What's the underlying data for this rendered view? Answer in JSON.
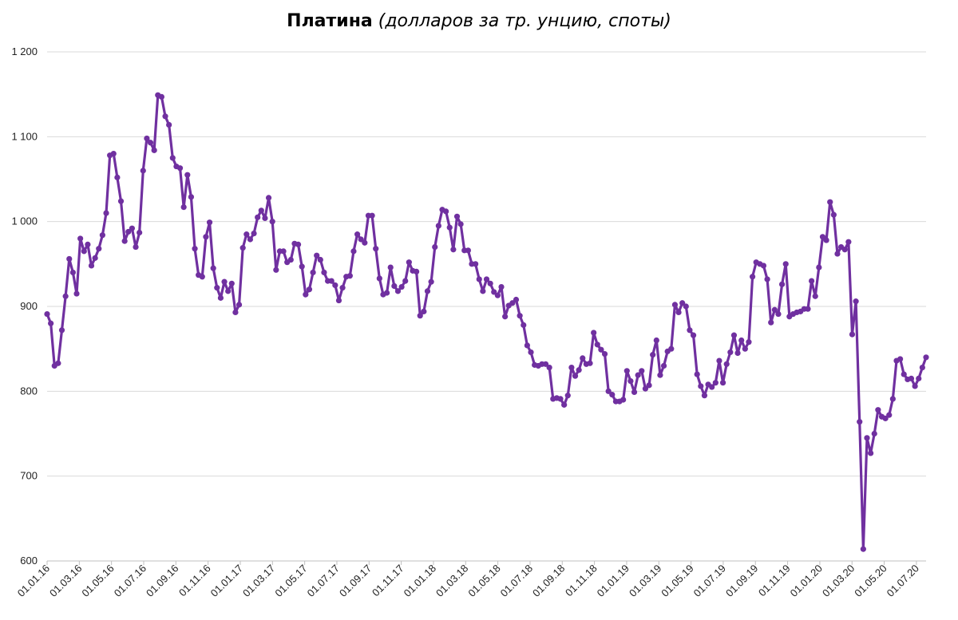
{
  "chart_data": {
    "type": "line",
    "title_bold": "Платина",
    "title_italic": "(долларов за тр. унцию, споты)",
    "xlabel": "",
    "ylabel": "",
    "ylim": [
      600,
      1200
    ],
    "y_ticks": [
      "600",
      "700",
      "800",
      "900",
      "1 000",
      "1 100",
      "1 200"
    ],
    "y_tick_values": [
      600,
      700,
      800,
      900,
      1000,
      1100,
      1200
    ],
    "x_ticks": [
      "01.01.16",
      "01.03.16",
      "01.05.16",
      "01.07.16",
      "01.09.16",
      "01.11.16",
      "01.01.17",
      "01.03.17",
      "01.05.17",
      "01.07.17",
      "01.09.17",
      "01.11.17",
      "01.01.18",
      "01.03.18",
      "01.05.18",
      "01.07.18",
      "01.09.18",
      "01.11.18",
      "01.01.19",
      "01.03.19",
      "01.05.19",
      "01.07.19",
      "01.09.19",
      "01.11.19",
      "01.01.20",
      "01.03.20",
      "01.05.20",
      "01.07.20"
    ],
    "grid": "horizontal",
    "line_color": "#7030a0",
    "series": [
      {
        "values": [
          891,
          880,
          830,
          833,
          872,
          912,
          956,
          940,
          915,
          980,
          965,
          973,
          948,
          957,
          968,
          984,
          1010,
          1078,
          1080,
          1052,
          1024,
          977,
          988,
          992,
          970,
          987,
          1060,
          1098,
          1093,
          1084,
          1149,
          1147,
          1124,
          1114,
          1075,
          1065,
          1063,
          1017,
          1055,
          1029,
          968,
          937,
          935,
          982,
          999,
          945,
          922,
          910,
          929,
          918,
          927,
          893,
          902,
          969,
          985,
          979,
          986,
          1005,
          1013,
          1004,
          1028,
          1000,
          943,
          965,
          965,
          952,
          955,
          974,
          973,
          947,
          914,
          920,
          940,
          960,
          955,
          940,
          930,
          930,
          925,
          907,
          922,
          935,
          936,
          965,
          985,
          979,
          975,
          1007,
          1007,
          968,
          933,
          914,
          916,
          946,
          924,
          918,
          923,
          930,
          952,
          942,
          941,
          889,
          894,
          918,
          929,
          970,
          995,
          1014,
          1012,
          993,
          967,
          1006,
          997,
          966,
          966,
          950,
          950,
          932,
          918,
          932,
          927,
          917,
          913,
          923,
          888,
          901,
          904,
          908,
          889,
          878,
          854,
          846,
          831,
          830,
          832,
          832,
          828,
          791,
          792,
          791,
          784,
          795,
          828,
          818,
          825,
          839,
          832,
          833,
          869,
          855,
          849,
          844,
          800,
          796,
          788,
          788,
          790,
          824,
          812,
          799,
          819,
          824,
          803,
          807,
          843,
          860,
          819,
          830,
          847,
          850,
          902,
          893,
          904,
          900,
          872,
          866,
          820,
          806,
          795,
          808,
          805,
          810,
          836,
          810,
          832,
          846,
          866,
          845,
          860,
          850,
          858,
          935,
          952,
          950,
          948,
          932,
          881,
          896,
          891,
          926,
          950,
          888,
          891,
          893,
          894,
          897,
          897,
          930,
          912,
          946,
          982,
          978,
          1023,
          1008,
          962,
          970,
          967,
          976,
          867,
          906,
          764,
          614,
          745,
          727,
          750,
          778,
          770,
          768,
          772,
          791,
          836,
          838,
          820,
          814,
          815,
          806,
          815,
          828,
          840
        ]
      }
    ]
  }
}
